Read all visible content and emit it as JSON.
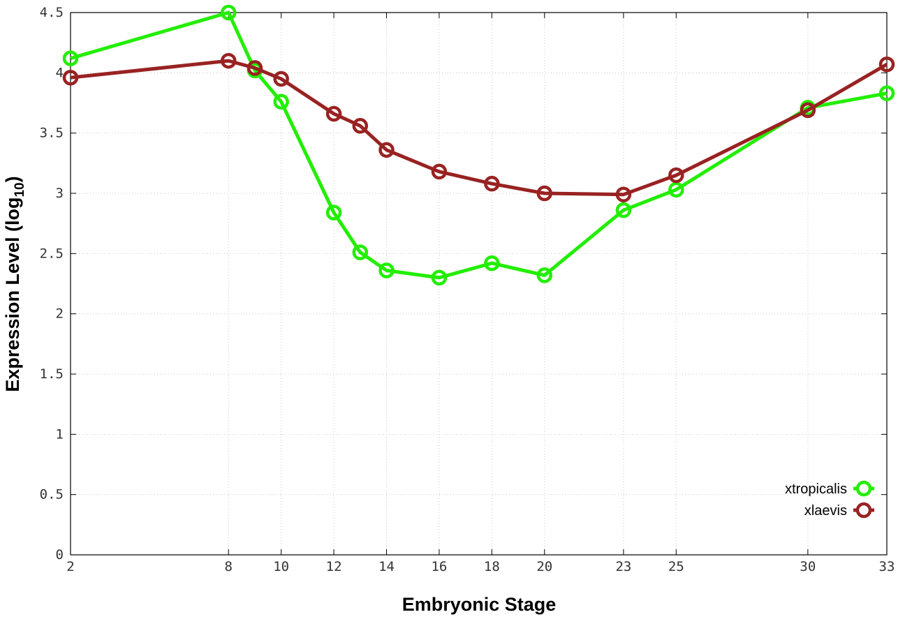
{
  "chart_data": {
    "type": "line",
    "xlabel": "Embryonic Stage",
    "ylabel": {
      "text": "Expression Level (log",
      "subscript": "10",
      "suffix": ")"
    },
    "xlim": [
      2,
      33
    ],
    "ylim": [
      0,
      4.5
    ],
    "x_ticks": [
      2,
      8,
      10,
      12,
      14,
      16,
      18,
      20,
      23,
      25,
      30,
      33
    ],
    "y_ticks": [
      0,
      0.5,
      1,
      1.5,
      2,
      2.5,
      3,
      3.5,
      4,
      4.5
    ],
    "y_tick_labels": [
      "0",
      "0.5",
      "1",
      "1.5",
      "2",
      "2.5",
      "3",
      "3.5",
      "4",
      "4.5"
    ],
    "grid": true,
    "legend_position": "bottom-right",
    "x": [
      2,
      8,
      9,
      10,
      12,
      13,
      14,
      16,
      18,
      20,
      23,
      25,
      30,
      33
    ],
    "series": [
      {
        "name": "xtropicalis",
        "color": "#22ee00",
        "values": [
          4.12,
          4.5,
          4.02,
          3.76,
          2.84,
          2.51,
          2.36,
          2.3,
          2.42,
          2.32,
          2.86,
          3.03,
          3.71,
          3.83
        ]
      },
      {
        "name": "xlaevis",
        "color": "#992222",
        "values": [
          3.96,
          4.1,
          4.04,
          3.95,
          3.66,
          3.56,
          3.36,
          3.18,
          3.08,
          3.0,
          2.99,
          3.15,
          3.69,
          4.07
        ]
      }
    ]
  }
}
